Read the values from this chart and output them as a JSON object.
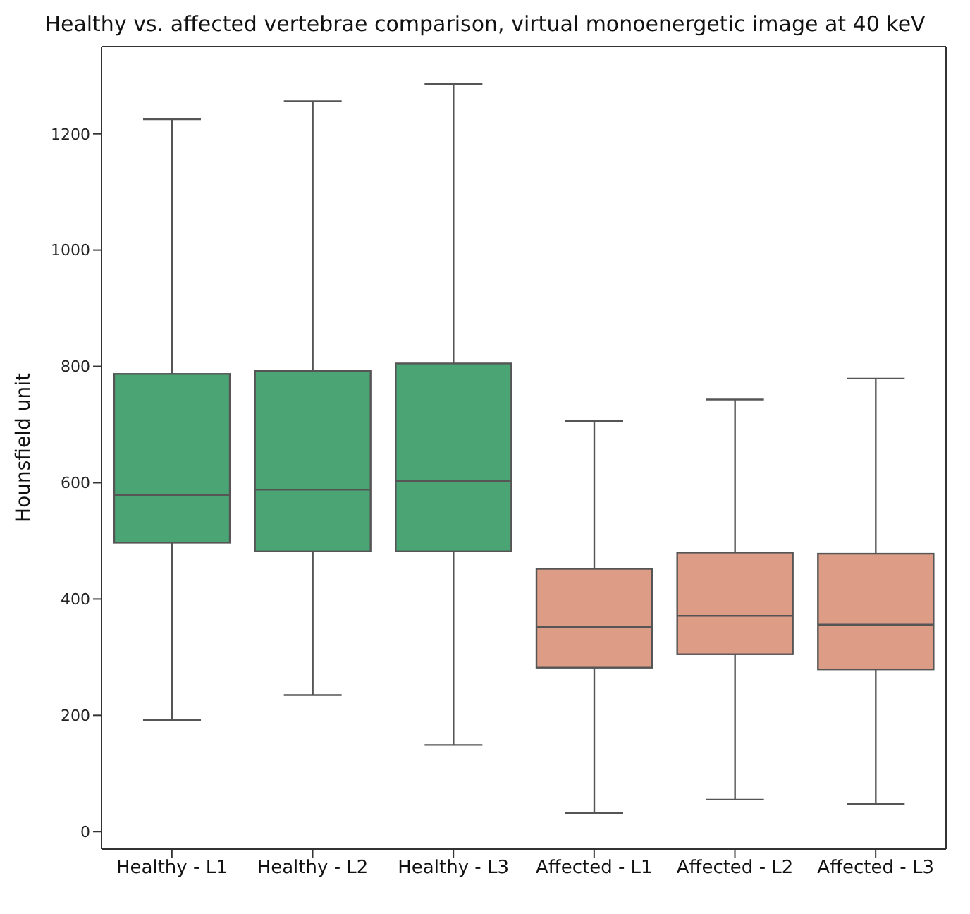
{
  "chart_data": {
    "type": "box",
    "title": "Healthy vs. affected vertebrae comparison, virtual monoenergetic image at 40 keV",
    "ylabel": "Hounsfield unit",
    "categories": [
      "Healthy - L1",
      "Healthy - L2",
      "Healthy - L3",
      "Affected - L1",
      "Affected - L2",
      "Affected - L3"
    ],
    "boxes": [
      {
        "low": 192,
        "q1": 497,
        "median": 579,
        "q3": 787,
        "high": 1225
      },
      {
        "low": 235,
        "q1": 482,
        "median": 588,
        "q3": 792,
        "high": 1256
      },
      {
        "low": 149,
        "q1": 482,
        "median": 603,
        "q3": 805,
        "high": 1286
      },
      {
        "low": 32,
        "q1": 282,
        "median": 352,
        "q3": 452,
        "high": 706
      },
      {
        "low": 55,
        "q1": 305,
        "median": 371,
        "q3": 480,
        "high": 743
      },
      {
        "low": 48,
        "q1": 279,
        "median": 356,
        "q3": 478,
        "high": 779
      }
    ],
    "colors": [
      "#4aa474",
      "#4aa474",
      "#4aa474",
      "#dc9c85",
      "#dc9c85",
      "#dc9c85"
    ],
    "ylim": [
      -30,
      1350
    ],
    "yticks": [
      0,
      200,
      400,
      600,
      800,
      1000,
      1200
    ],
    "grid": false,
    "legend": false
  }
}
